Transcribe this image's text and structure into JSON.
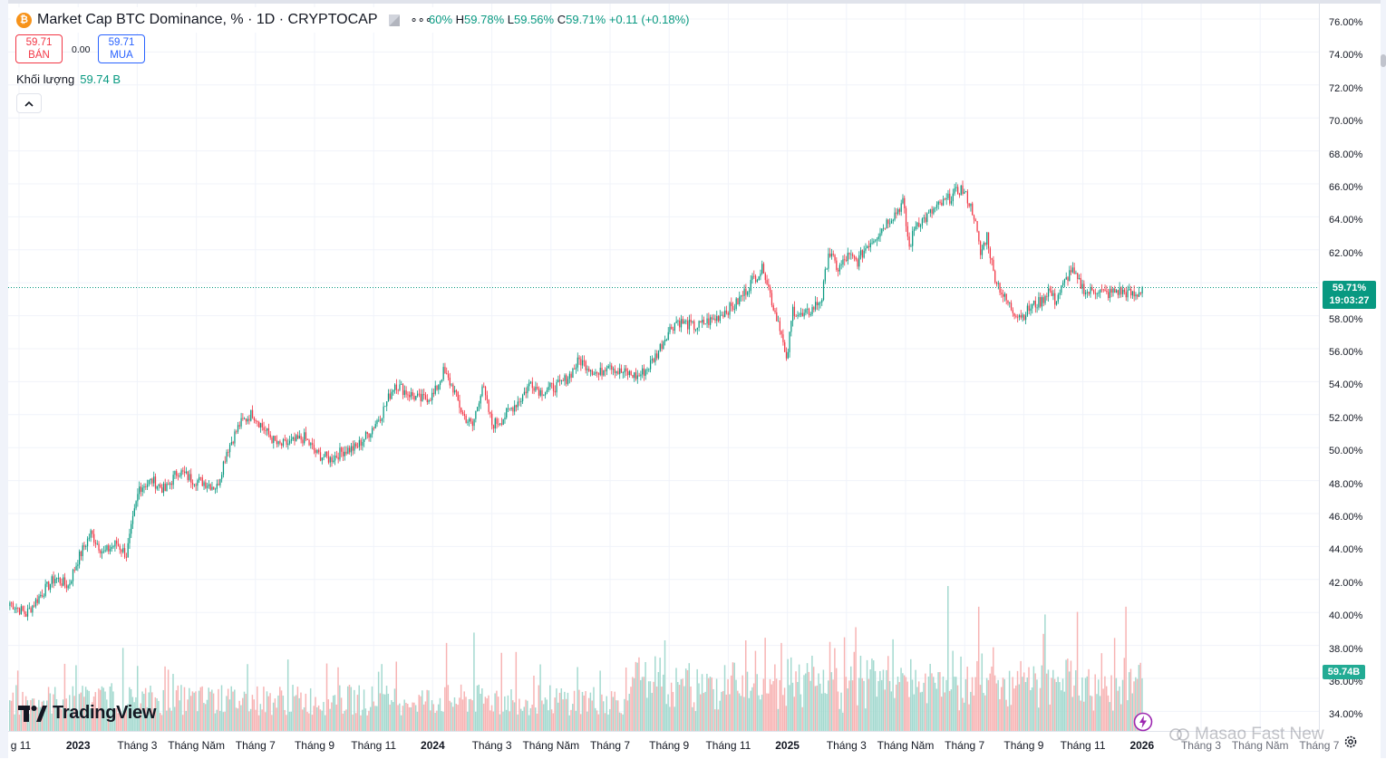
{
  "symbol": {
    "coin_glyph": "₿",
    "title": "Market Cap BTC Dominance, % · 1D · CRYPTOCAP",
    "menu_glyph": "∘∘∘"
  },
  "ohlc": {
    "o_label": "",
    "o_value": "60%",
    "h_label": "H",
    "h_value": "59.78%",
    "l_label": "L",
    "l_value": "59.56%",
    "c_label": "C",
    "c_value": "59.71%",
    "change": "+0.11 (+0.18%)"
  },
  "trade": {
    "sell_price": "59.71",
    "sell_label": "BÁN",
    "spread": "0.00",
    "buy_price": "59.71",
    "buy_label": "MUA"
  },
  "volume": {
    "label": "Khối lượng",
    "value": "59.74 B"
  },
  "price_tag": {
    "price": "59.71%",
    "countdown": "19:03:27"
  },
  "volume_tag": "59.74B",
  "branding": {
    "logo_text": "TradingView"
  },
  "watermark": "Masao Fast New",
  "colors": {
    "up": "#089981",
    "down": "#f23645",
    "vol_up": "#a3d9cf",
    "vol_down": "#f7b3b3",
    "grid": "#f0f3fa",
    "price_line": "#089981"
  },
  "y_axis_ticks": [
    "76.00%",
    "74.00%",
    "72.00%",
    "70.00%",
    "68.00%",
    "66.00%",
    "64.00%",
    "62.00%",
    "60.00%",
    "58.00%",
    "56.00%",
    "54.00%",
    "52.00%",
    "50.00%",
    "48.00%",
    "46.00%",
    "44.00%",
    "42.00%",
    "40.00%",
    "38.00%",
    "36.00%",
    "34.00%"
  ],
  "x_axis_labels": [
    {
      "text": "g 11",
      "kind": "month"
    },
    {
      "text": "2023",
      "kind": "year"
    },
    {
      "text": "Tháng 3",
      "kind": "month"
    },
    {
      "text": "Tháng Năm",
      "kind": "month"
    },
    {
      "text": "Tháng 7",
      "kind": "month"
    },
    {
      "text": "Tháng 9",
      "kind": "month"
    },
    {
      "text": "Tháng 11",
      "kind": "month"
    },
    {
      "text": "2024",
      "kind": "year"
    },
    {
      "text": "Tháng 3",
      "kind": "month"
    },
    {
      "text": "Tháng Năm",
      "kind": "month"
    },
    {
      "text": "Tháng 7",
      "kind": "month"
    },
    {
      "text": "Tháng 9",
      "kind": "month"
    },
    {
      "text": "Tháng 11",
      "kind": "month"
    },
    {
      "text": "2025",
      "kind": "year"
    },
    {
      "text": "Tháng 3",
      "kind": "month"
    },
    {
      "text": "Tháng Năm",
      "kind": "month"
    },
    {
      "text": "Tháng 7",
      "kind": "month"
    },
    {
      "text": "Tháng 9",
      "kind": "month"
    },
    {
      "text": "Tháng 11",
      "kind": "month"
    },
    {
      "text": "2026",
      "kind": "year"
    },
    {
      "text": "Tháng 3",
      "kind": "future"
    },
    {
      "text": "Tháng Năm",
      "kind": "future"
    },
    {
      "text": "Tháng 7",
      "kind": "future"
    }
  ],
  "chart_data": {
    "type": "candlestick",
    "title": "Market Cap BTC Dominance, % · 1D · CRYPTOCAP",
    "ylim": [
      33.5,
      76.5
    ],
    "last_price": 59.71,
    "volume_max": 70,
    "keypoints": [
      [
        0,
        40.6
      ],
      [
        10,
        39.9
      ],
      [
        20,
        41.2
      ],
      [
        28,
        42.1
      ],
      [
        36,
        41.6
      ],
      [
        42,
        43.2
      ],
      [
        50,
        44.8
      ],
      [
        58,
        43.6
      ],
      [
        66,
        44.2
      ],
      [
        72,
        43.5
      ],
      [
        80,
        47.6
      ],
      [
        88,
        48.0
      ],
      [
        96,
        47.4
      ],
      [
        104,
        48.6
      ],
      [
        112,
        48.1
      ],
      [
        120,
        47.9
      ],
      [
        128,
        47.6
      ],
      [
        134,
        49.8
      ],
      [
        142,
        51.4
      ],
      [
        150,
        52.1
      ],
      [
        158,
        51.0
      ],
      [
        166,
        50.1
      ],
      [
        174,
        50.3
      ],
      [
        182,
        50.6
      ],
      [
        190,
        49.6
      ],
      [
        198,
        49.3
      ],
      [
        206,
        49.8
      ],
      [
        214,
        50.0
      ],
      [
        222,
        50.9
      ],
      [
        230,
        52.1
      ],
      [
        238,
        53.9
      ],
      [
        246,
        53.3
      ],
      [
        254,
        52.9
      ],
      [
        262,
        53.2
      ],
      [
        268,
        54.6
      ],
      [
        274,
        53.6
      ],
      [
        280,
        52.0
      ],
      [
        286,
        51.3
      ],
      [
        292,
        53.8
      ],
      [
        298,
        51.4
      ],
      [
        304,
        51.7
      ],
      [
        310,
        52.4
      ],
      [
        316,
        53.0
      ],
      [
        322,
        54.0
      ],
      [
        328,
        53.4
      ],
      [
        334,
        53.6
      ],
      [
        340,
        53.8
      ],
      [
        346,
        54.4
      ],
      [
        352,
        55.3
      ],
      [
        358,
        54.9
      ],
      [
        364,
        54.4
      ],
      [
        370,
        55.2
      ],
      [
        376,
        54.6
      ],
      [
        382,
        54.5
      ],
      [
        388,
        54.3
      ],
      [
        394,
        54.8
      ],
      [
        400,
        55.7
      ],
      [
        406,
        56.9
      ],
      [
        412,
        57.7
      ],
      [
        418,
        57.5
      ],
      [
        424,
        57.3
      ],
      [
        430,
        57.6
      ],
      [
        436,
        57.8
      ],
      [
        442,
        58.3
      ],
      [
        448,
        58.6
      ],
      [
        454,
        59.4
      ],
      [
        460,
        60.3
      ],
      [
        466,
        60.9
      ],
      [
        472,
        58.5
      ],
      [
        476,
        57.4
      ],
      [
        480,
        55.1
      ],
      [
        484,
        58.4
      ],
      [
        490,
        57.9
      ],
      [
        496,
        58.4
      ],
      [
        502,
        59.1
      ],
      [
        506,
        61.9
      ],
      [
        512,
        60.8
      ],
      [
        518,
        61.6
      ],
      [
        524,
        61.3
      ],
      [
        530,
        62.3
      ],
      [
        536,
        62.9
      ],
      [
        542,
        63.7
      ],
      [
        548,
        64.3
      ],
      [
        552,
        64.9
      ],
      [
        556,
        62.1
      ],
      [
        560,
        63.6
      ],
      [
        566,
        63.9
      ],
      [
        572,
        64.5
      ],
      [
        578,
        64.9
      ],
      [
        584,
        65.4
      ],
      [
        588,
        65.7
      ],
      [
        592,
        65.1
      ],
      [
        596,
        64.1
      ],
      [
        600,
        61.7
      ],
      [
        604,
        62.9
      ],
      [
        608,
        60.6
      ],
      [
        614,
        59.2
      ],
      [
        620,
        58.3
      ],
      [
        626,
        58.0
      ],
      [
        632,
        58.6
      ],
      [
        638,
        58.9
      ],
      [
        642,
        59.6
      ],
      [
        646,
        58.9
      ],
      [
        652,
        60.0
      ],
      [
        656,
        60.8
      ],
      [
        660,
        60.1
      ],
      [
        666,
        59.4
      ],
      [
        672,
        59.6
      ],
      [
        678,
        59.3
      ],
      [
        684,
        59.5
      ],
      [
        690,
        59.4
      ],
      [
        696,
        59.2
      ],
      [
        700,
        59.71
      ]
    ],
    "volume_spikes": [
      [
        270,
        34
      ],
      [
        287,
        38
      ],
      [
        405,
        35
      ],
      [
        455,
        35
      ],
      [
        467,
        36
      ],
      [
        477,
        34
      ],
      [
        510,
        32
      ],
      [
        580,
        56
      ],
      [
        599,
        48
      ],
      [
        640,
        45
      ],
      [
        660,
        46
      ],
      [
        690,
        48
      ]
    ]
  }
}
